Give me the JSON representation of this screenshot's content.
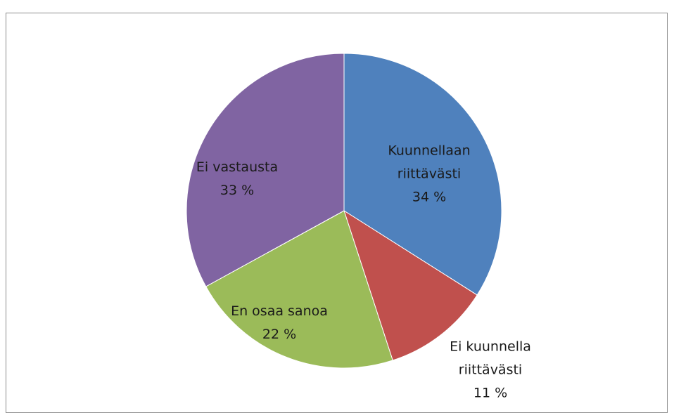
{
  "chart_data": {
    "type": "pie",
    "categories": [
      "Kuunnellaan riittävästi",
      "Ei kuunnella riittävästi",
      "En osaa sanoa",
      "Ei vastausta"
    ],
    "values": [
      34,
      11,
      22,
      33
    ],
    "value_labels": [
      "34 %",
      "11 %",
      "22 %",
      "33 %"
    ],
    "colors": [
      "#4f81bd",
      "#c0504d",
      "#9bbb59",
      "#8064a2"
    ]
  }
}
